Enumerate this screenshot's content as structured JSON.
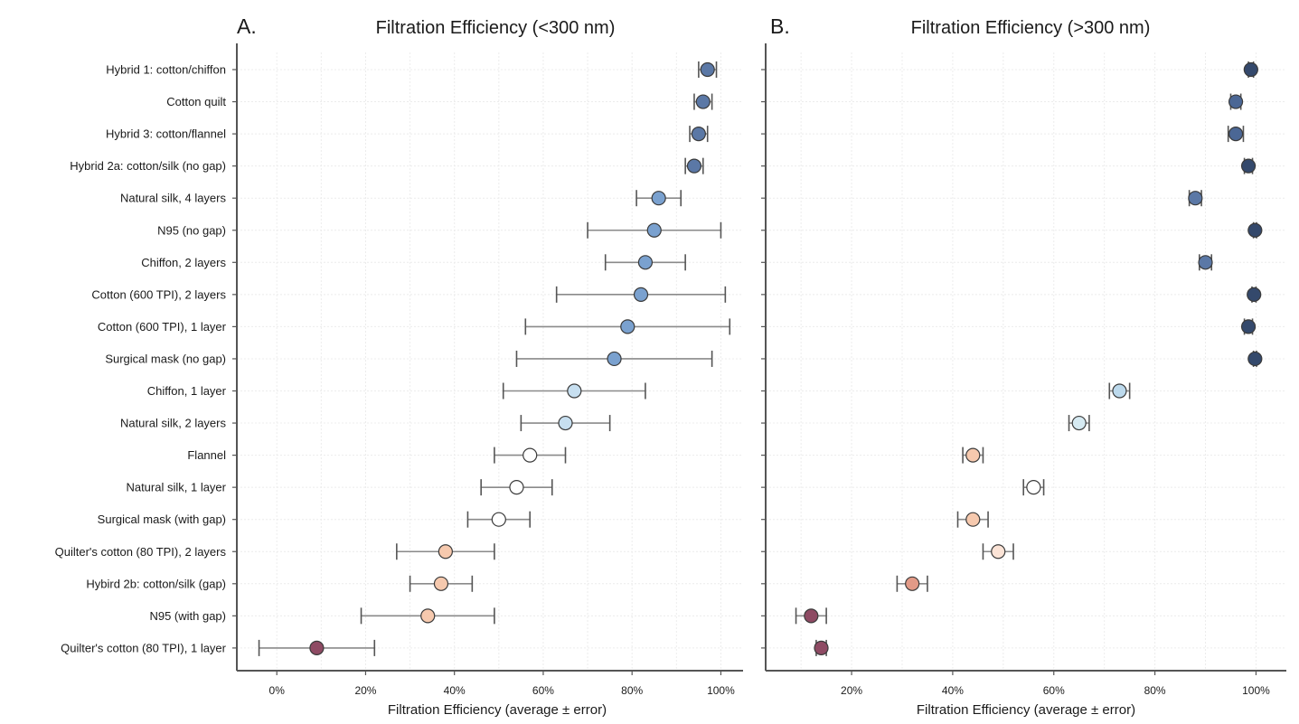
{
  "chart_data": [
    {
      "type": "scatter",
      "panel_label": "A.",
      "title": "Filtration Efficiency (<300 nm)",
      "xlabel": "Filtration Efficiency (average ± error)",
      "ylabel": "",
      "xlim": [
        -9,
        105
      ],
      "xticks": [
        0,
        20,
        40,
        60,
        80,
        100
      ],
      "xtick_labels": [
        "0%",
        "20%",
        "40%",
        "60%",
        "80%",
        "100%"
      ],
      "grid": true,
      "categories": [
        "Hybrid 1: cotton/chiffon",
        "Cotton quilt",
        "Hybrid 3: cotton/flannel",
        "Hybrid 2a: cotton/silk (no gap)",
        "Natural silk, 4 layers",
        "N95 (no gap)",
        "Chiffon, 2 layers",
        "Cotton (600 TPI), 2 layers",
        "Cotton (600 TPI), 1 layer",
        "Surgical mask (no gap)",
        "Chiffon, 1 layer",
        "Natural silk, 2 layers",
        "Flannel",
        "Natural silk, 1 layer",
        "Surgical mask (with gap)",
        "Quilter's cotton (80 TPI), 2 layers",
        "Hybird 2b: cotton/silk (gap)",
        "N95 (with gap)",
        "Quilter's cotton (80 TPI), 1 layer"
      ],
      "values": [
        97,
        96,
        95,
        94,
        86,
        85,
        83,
        82,
        79,
        76,
        67,
        65,
        57,
        54,
        50,
        38,
        37,
        34,
        9
      ],
      "errors": [
        2,
        2,
        2,
        2,
        5,
        15,
        9,
        19,
        23,
        22,
        16,
        10,
        8,
        8,
        7,
        11,
        7,
        15,
        13
      ],
      "colors": [
        "#5b78a6",
        "#5b78a6",
        "#5b78a6",
        "#5b78a6",
        "#7aa1cf",
        "#7aa1cf",
        "#7aa1cf",
        "#7aa1cf",
        "#7aa1cf",
        "#7aa1cf",
        "#c7dff0",
        "#c7dff0",
        "#ffffff",
        "#ffffff",
        "#ffffff",
        "#f6c9ae",
        "#f6c9ae",
        "#f6c9ae",
        "#8e4a63"
      ]
    },
    {
      "type": "scatter",
      "panel_label": "B.",
      "title": "Filtration Efficiency (>300 nm)",
      "xlabel": "Filtration Efficiency (average ± error)",
      "ylabel": "",
      "xlim": [
        3,
        106
      ],
      "xticks": [
        20,
        40,
        60,
        80,
        100
      ],
      "xtick_labels": [
        "20%",
        "40%",
        "60%",
        "80%",
        "100%"
      ],
      "grid": true,
      "categories": [
        "Hybrid 1: cotton/chiffon",
        "Cotton quilt",
        "Hybrid 3: cotton/flannel",
        "Hybrid 2a: cotton/silk (no gap)",
        "Natural silk, 4 layers",
        "N95 (no gap)",
        "Chiffon, 2 layers",
        "Cotton (600 TPI), 2 layers",
        "Cotton (600 TPI), 1 layer",
        "Surgical mask (no gap)",
        "Chiffon, 1 layer",
        "Natural silk, 2 layers",
        "Flannel",
        "Natural silk, 1 layer",
        "Surgical mask (with gap)",
        "Quilter's cotton (80 TPI), 2 layers",
        "Hybird 2b: cotton/silk (gap)",
        "N95 (with gap)",
        "Quilter's cotton (80 TPI), 1 layer"
      ],
      "values": [
        99,
        96,
        96,
        98.5,
        88,
        99.8,
        90,
        99.6,
        98.5,
        99.8,
        73,
        65,
        44,
        56,
        44,
        49,
        32,
        12,
        14
      ],
      "errors": [
        0.5,
        1,
        1.5,
        0.8,
        1.2,
        0.3,
        1.2,
        0.4,
        0.8,
        0.3,
        2,
        2,
        2,
        2,
        3,
        3,
        3,
        3,
        1
      ],
      "colors": [
        "#34496c",
        "#4b6795",
        "#4b6795",
        "#34496c",
        "#5b78a6",
        "#34496c",
        "#5b78a6",
        "#34496c",
        "#34496c",
        "#34496c",
        "#bcd9ec",
        "#d6eaf2",
        "#f6c9ae",
        "#ffffff",
        "#f6c9ae",
        "#fbe3d6",
        "#e29a87",
        "#8e4a63",
        "#8e4a63"
      ]
    }
  ]
}
